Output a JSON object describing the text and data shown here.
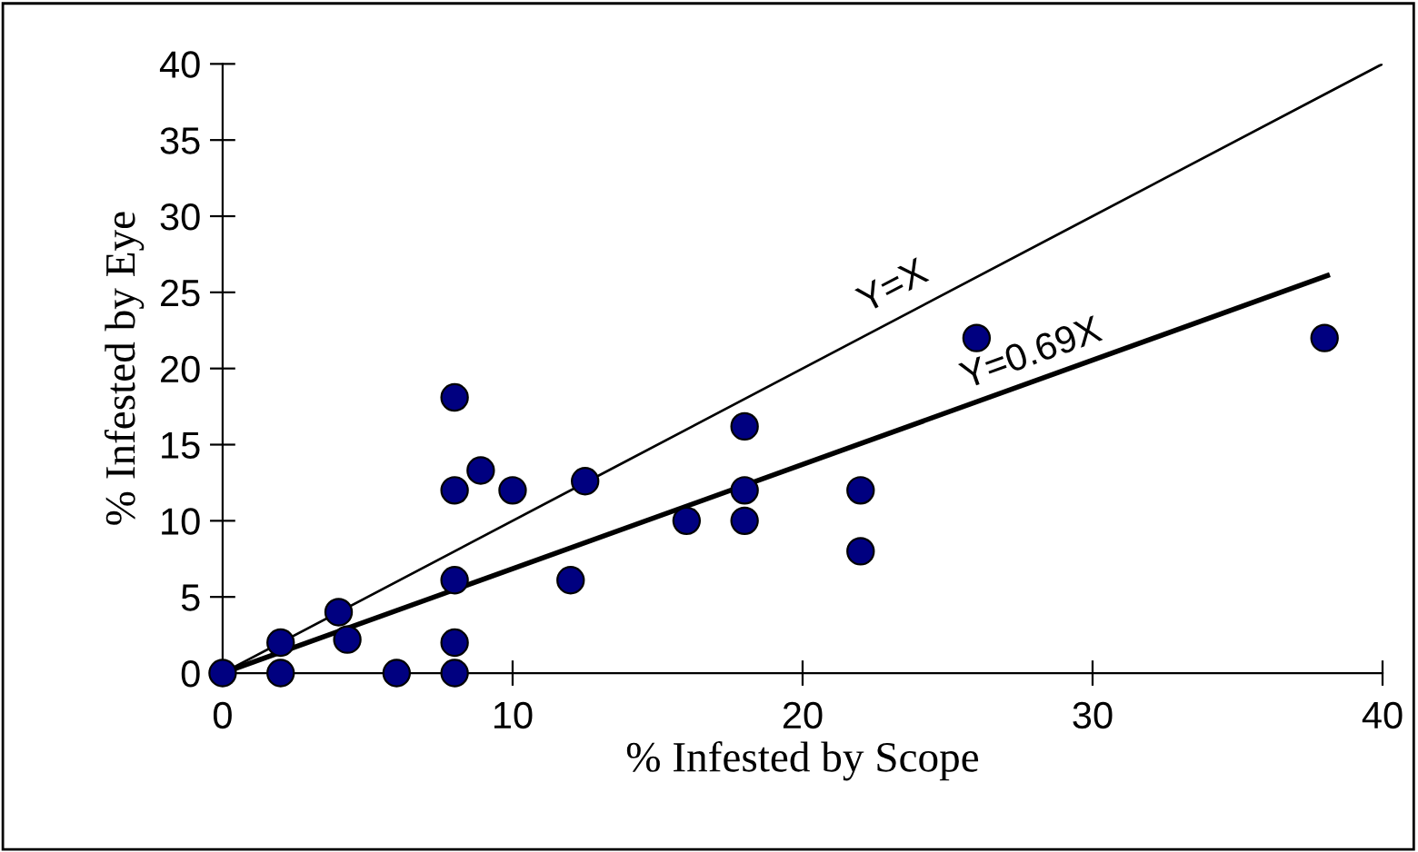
{
  "chart_data": {
    "type": "scatter",
    "xlabel": "% Infested by Scope",
    "ylabel": "% Infested by Eye",
    "xlim": [
      0,
      40
    ],
    "ylim": [
      0,
      40
    ],
    "xticks": [
      0,
      10,
      20,
      30,
      40
    ],
    "yticks": [
      0,
      5,
      10,
      15,
      20,
      25,
      30,
      35,
      40
    ],
    "grid": false,
    "series": [
      {
        "type": "line",
        "name": "Y=X",
        "marker": "none",
        "color": "#000000",
        "x": [
          0,
          40
        ],
        "values": [
          0,
          40
        ]
      },
      {
        "type": "line",
        "name": "Y=0.69X",
        "marker": "none",
        "color": "#000000",
        "x": [
          0,
          38.1
        ],
        "values": [
          0,
          26.1
        ]
      },
      {
        "marker": "circle",
        "color": "#000080",
        "x": [
          0,
          2,
          2,
          4,
          4.3,
          6,
          8,
          8,
          8,
          8,
          8,
          8.9,
          10,
          12,
          12.5,
          16,
          18,
          18,
          18,
          22,
          22,
          26,
          38
        ],
        "values": [
          0,
          2,
          0,
          4,
          2.2,
          0,
          0,
          2,
          6.1,
          12,
          18.1,
          13.3,
          12,
          6.1,
          12.6,
          10,
          12,
          10,
          16.2,
          12,
          8,
          22,
          22
        ]
      }
    ]
  }
}
